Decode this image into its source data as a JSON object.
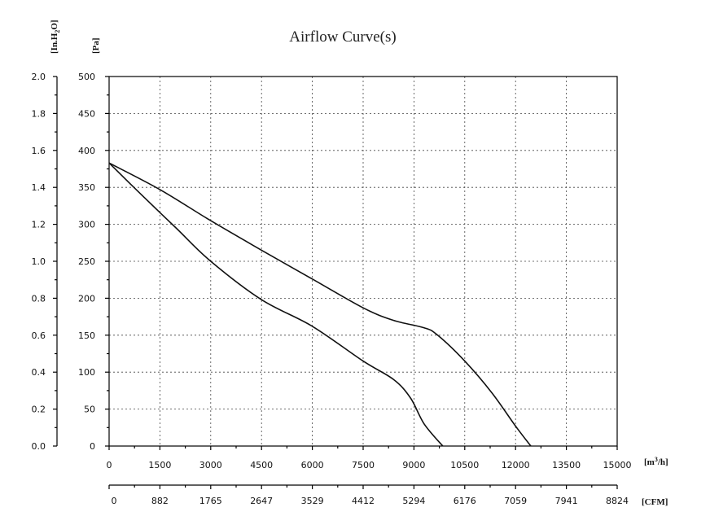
{
  "chart_data": {
    "type": "line",
    "title": "Airflow Curve(s)",
    "pressure_unit_pa": "[Pa]",
    "pressure_unit_inh2o_main": "[In.H",
    "pressure_unit_inh2o_sub": "2",
    "pressure_unit_inh2o_end": "O]",
    "flow_unit_m3h_main": "[m",
    "flow_unit_m3h_sup": "3",
    "flow_unit_m3h_end": "/h]",
    "flow_unit_cfm": "[CFM]",
    "xlim": [
      0,
      15000
    ],
    "ylim": [
      0,
      500
    ],
    "grid": true,
    "x_ticks": [
      "0",
      "1500",
      "3000",
      "4500",
      "6000",
      "7500",
      "9000",
      "10500",
      "12000",
      "13500",
      "15000"
    ],
    "y_ticks_pa": [
      "0",
      "50",
      "100",
      "150",
      "200",
      "250",
      "300",
      "350",
      "400",
      "450",
      "500"
    ],
    "y_ticks_inh2o": [
      "0.0",
      "0.2",
      "0.4",
      "0.6",
      "0.8",
      "1.0",
      "1.2",
      "1.4",
      "1.6",
      "1.8",
      "2.0"
    ],
    "cfm_ticks": [
      "0",
      "882",
      "1765",
      "2647",
      "3529",
      "4412",
      "5294",
      "6176",
      "7059",
      "7941",
      "8824"
    ],
    "series": [
      {
        "points": [
          [
            0,
            383
          ],
          [
            1500,
            347
          ],
          [
            3000,
            305
          ],
          [
            4500,
            265
          ],
          [
            6000,
            226
          ],
          [
            7500,
            187
          ],
          [
            8400,
            170
          ],
          [
            9300,
            160
          ],
          [
            9700,
            150
          ],
          [
            10500,
            115
          ],
          [
            11300,
            72
          ],
          [
            12000,
            27
          ],
          [
            12450,
            0
          ]
        ]
      },
      {
        "points": [
          [
            0,
            383
          ],
          [
            1000,
            338
          ],
          [
            2000,
            294
          ],
          [
            3000,
            250
          ],
          [
            4500,
            198
          ],
          [
            6000,
            162
          ],
          [
            7500,
            115
          ],
          [
            8400,
            90
          ],
          [
            8900,
            65
          ],
          [
            9300,
            30
          ],
          [
            9850,
            0
          ]
        ]
      }
    ]
  }
}
